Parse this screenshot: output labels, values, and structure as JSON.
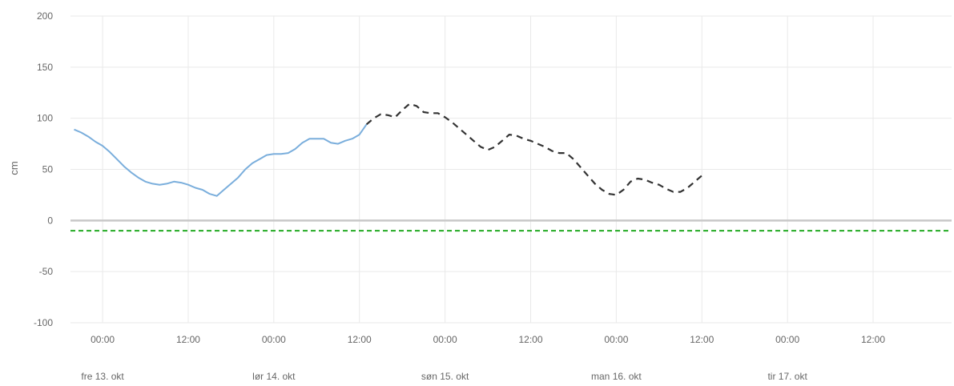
{
  "chart_data": {
    "type": "line",
    "title": "",
    "ylabel": "cm",
    "ylim": [
      -100,
      200
    ],
    "yticks": [
      200,
      150,
      100,
      50,
      0,
      -50,
      -100
    ],
    "xlim": [
      "2023-10-12T19:30",
      "2023-10-17T23:00"
    ],
    "xticks": [
      {
        "t": "2023-10-13T00:00",
        "label": "00:00"
      },
      {
        "t": "2023-10-13T12:00",
        "label": "12:00"
      },
      {
        "t": "2023-10-14T00:00",
        "label": "00:00"
      },
      {
        "t": "2023-10-14T12:00",
        "label": "12:00"
      },
      {
        "t": "2023-10-15T00:00",
        "label": "00:00"
      },
      {
        "t": "2023-10-15T12:00",
        "label": "12:00"
      },
      {
        "t": "2023-10-16T00:00",
        "label": "00:00"
      },
      {
        "t": "2023-10-16T12:00",
        "label": "12:00"
      },
      {
        "t": "2023-10-17T00:00",
        "label": "00:00"
      },
      {
        "t": "2023-10-17T12:00",
        "label": "12:00"
      }
    ],
    "day_labels": [
      {
        "t": "2023-10-13T00:00",
        "label": "fre 13. okt"
      },
      {
        "t": "2023-10-14T00:00",
        "label": "lør 14. okt"
      },
      {
        "t": "2023-10-15T00:00",
        "label": "søn 15. okt"
      },
      {
        "t": "2023-10-16T00:00",
        "label": "man 16. okt"
      },
      {
        "t": "2023-10-17T00:00",
        "label": "tir 17. okt"
      }
    ],
    "grid": true,
    "series": [
      {
        "style": "solid",
        "color": "#7aaedc",
        "points": [
          [
            "2023-10-12T20:00",
            89
          ],
          [
            "2023-10-12T21:00",
            86
          ],
          [
            "2023-10-12T22:00",
            82
          ],
          [
            "2023-10-12T23:00",
            77
          ],
          [
            "2023-10-13T00:00",
            73
          ],
          [
            "2023-10-13T01:00",
            67
          ],
          [
            "2023-10-13T02:00",
            60
          ],
          [
            "2023-10-13T03:00",
            53
          ],
          [
            "2023-10-13T04:00",
            47
          ],
          [
            "2023-10-13T05:00",
            42
          ],
          [
            "2023-10-13T06:00",
            38
          ],
          [
            "2023-10-13T07:00",
            36
          ],
          [
            "2023-10-13T08:00",
            35
          ],
          [
            "2023-10-13T09:00",
            36
          ],
          [
            "2023-10-13T10:00",
            38
          ],
          [
            "2023-10-13T11:00",
            37
          ],
          [
            "2023-10-13T12:00",
            35
          ],
          [
            "2023-10-13T13:00",
            32
          ],
          [
            "2023-10-13T14:00",
            30
          ],
          [
            "2023-10-13T15:00",
            26
          ],
          [
            "2023-10-13T16:00",
            24
          ],
          [
            "2023-10-13T17:00",
            30
          ],
          [
            "2023-10-13T18:00",
            36
          ],
          [
            "2023-10-13T19:00",
            42
          ],
          [
            "2023-10-13T20:00",
            50
          ],
          [
            "2023-10-13T21:00",
            56
          ],
          [
            "2023-10-13T22:00",
            60
          ],
          [
            "2023-10-13T23:00",
            64
          ],
          [
            "2023-10-14T00:00",
            65
          ],
          [
            "2023-10-14T01:00",
            65
          ],
          [
            "2023-10-14T02:00",
            66
          ],
          [
            "2023-10-14T03:00",
            70
          ],
          [
            "2023-10-14T04:00",
            76
          ],
          [
            "2023-10-14T05:00",
            80
          ],
          [
            "2023-10-14T06:00",
            80
          ],
          [
            "2023-10-14T07:00",
            80
          ],
          [
            "2023-10-14T08:00",
            76
          ],
          [
            "2023-10-14T09:00",
            75
          ],
          [
            "2023-10-14T10:00",
            78
          ],
          [
            "2023-10-14T11:00",
            80
          ],
          [
            "2023-10-14T12:00",
            84
          ],
          [
            "2023-10-14T13:00",
            94
          ]
        ]
      },
      {
        "style": "dashed",
        "color": "#333333",
        "points": [
          [
            "2023-10-14T13:00",
            94
          ],
          [
            "2023-10-14T14:00",
            100
          ],
          [
            "2023-10-14T15:00",
            104
          ],
          [
            "2023-10-14T16:00",
            103
          ],
          [
            "2023-10-14T17:00",
            101
          ],
          [
            "2023-10-14T18:00",
            108
          ],
          [
            "2023-10-14T19:00",
            114
          ],
          [
            "2023-10-14T20:00",
            112
          ],
          [
            "2023-10-14T21:00",
            106
          ],
          [
            "2023-10-14T22:00",
            105
          ],
          [
            "2023-10-14T23:00",
            105
          ],
          [
            "2023-10-15T00:00",
            101
          ],
          [
            "2023-10-15T01:00",
            96
          ],
          [
            "2023-10-15T02:00",
            90
          ],
          [
            "2023-10-15T03:00",
            84
          ],
          [
            "2023-10-15T04:00",
            78
          ],
          [
            "2023-10-15T05:00",
            72
          ],
          [
            "2023-10-15T06:00",
            69
          ],
          [
            "2023-10-15T07:00",
            72
          ],
          [
            "2023-10-15T08:00",
            78
          ],
          [
            "2023-10-15T09:00",
            84
          ],
          [
            "2023-10-15T10:00",
            83
          ],
          [
            "2023-10-15T11:00",
            80
          ],
          [
            "2023-10-15T12:00",
            78
          ],
          [
            "2023-10-15T13:00",
            75
          ],
          [
            "2023-10-15T14:00",
            72
          ],
          [
            "2023-10-15T15:00",
            68
          ],
          [
            "2023-10-15T16:00",
            66
          ],
          [
            "2023-10-15T17:00",
            66
          ],
          [
            "2023-10-15T18:00",
            60
          ],
          [
            "2023-10-15T19:00",
            52
          ],
          [
            "2023-10-15T20:00",
            44
          ],
          [
            "2023-10-15T21:00",
            36
          ],
          [
            "2023-10-15T22:00",
            30
          ],
          [
            "2023-10-15T23:00",
            26
          ],
          [
            "2023-10-16T00:00",
            25
          ],
          [
            "2023-10-16T01:00",
            30
          ],
          [
            "2023-10-16T02:00",
            38
          ],
          [
            "2023-10-16T03:00",
            41
          ],
          [
            "2023-10-16T04:00",
            40
          ],
          [
            "2023-10-16T05:00",
            37
          ],
          [
            "2023-10-16T06:00",
            35
          ],
          [
            "2023-10-16T07:00",
            31
          ],
          [
            "2023-10-16T08:00",
            28
          ],
          [
            "2023-10-16T09:00",
            28
          ],
          [
            "2023-10-16T10:00",
            32
          ],
          [
            "2023-10-16T11:00",
            38
          ],
          [
            "2023-10-16T12:00",
            44
          ]
        ]
      }
    ],
    "reference_lines": [
      {
        "y": 0,
        "color": "#c8c8c8",
        "style": "solid"
      },
      {
        "y": -10,
        "color": "#22aa22",
        "style": "dashed"
      }
    ]
  }
}
